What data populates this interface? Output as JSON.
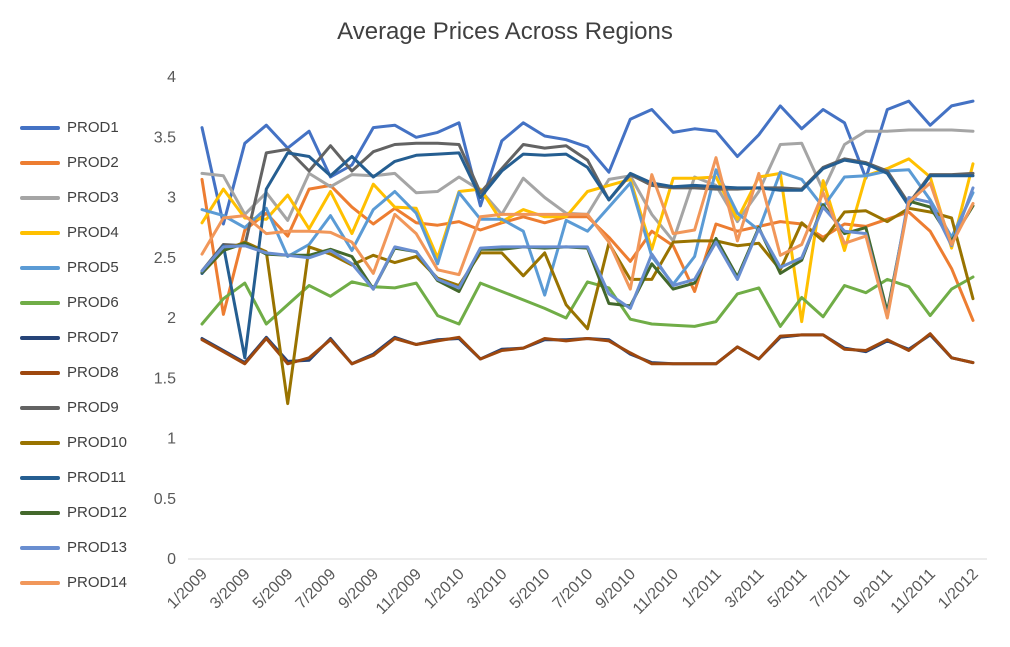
{
  "chart_data": {
    "type": "line",
    "title": "Average Prices Across Regions",
    "xlabel": "",
    "ylabel": "",
    "ylim": [
      0,
      4
    ],
    "yticks": [
      "0",
      "0.5",
      "1",
      "1.5",
      "2",
      "2.5",
      "3",
      "3.5",
      "4"
    ],
    "xticks": [
      "1/2009",
      "3/2009",
      "5/2009",
      "7/2009",
      "9/2009",
      "11/2009",
      "1/2010",
      "3/2010",
      "5/2010",
      "7/2010",
      "9/2010",
      "11/2010",
      "1/2011",
      "3/2011",
      "5/2011",
      "7/2011",
      "9/2011",
      "11/2011",
      "1/2012"
    ],
    "grid": false,
    "legend_position": "left",
    "x": [
      "1/2009",
      "2/2009",
      "3/2009",
      "4/2009",
      "5/2009",
      "6/2009",
      "7/2009",
      "8/2009",
      "9/2009",
      "10/2009",
      "11/2009",
      "12/2009",
      "1/2010",
      "2/2010",
      "3/2010",
      "4/2010",
      "5/2010",
      "6/2010",
      "7/2010",
      "8/2010",
      "9/2010",
      "10/2010",
      "11/2010",
      "12/2010",
      "1/2011",
      "2/2011",
      "3/2011",
      "4/2011",
      "5/2011",
      "6/2011",
      "7/2011",
      "8/2011",
      "9/2011",
      "10/2011",
      "11/2011",
      "12/2011",
      "1/2012"
    ],
    "series": [
      {
        "name": "PROD1",
        "color": "#4472C4",
        "values": [
          3.58,
          2.78,
          3.45,
          3.6,
          3.41,
          3.55,
          3.17,
          3.27,
          3.58,
          3.6,
          3.5,
          3.54,
          3.62,
          2.93,
          3.47,
          3.62,
          3.51,
          3.48,
          3.42,
          3.21,
          3.65,
          3.73,
          3.54,
          3.57,
          3.55,
          3.34,
          3.52,
          3.76,
          3.57,
          3.73,
          3.62,
          3.16,
          3.73,
          3.8,
          3.6,
          3.76,
          3.8
        ]
      },
      {
        "name": "PROD2",
        "color": "#ED7D31",
        "values": [
          3.15,
          2.03,
          2.73,
          2.87,
          2.68,
          3.07,
          3.1,
          2.92,
          2.78,
          2.91,
          2.79,
          2.77,
          2.8,
          2.73,
          2.79,
          2.84,
          2.79,
          2.84,
          2.84,
          2.67,
          2.47,
          2.72,
          2.6,
          2.22,
          2.78,
          2.72,
          2.76,
          2.8,
          2.78,
          2.67,
          2.78,
          2.76,
          2.82,
          2.88,
          2.72,
          2.41,
          1.98
        ]
      },
      {
        "name": "PROD3",
        "color": "#A5A5A5",
        "values": [
          3.2,
          3.18,
          2.86,
          3.04,
          2.81,
          3.2,
          3.09,
          3.19,
          3.18,
          3.2,
          3.04,
          3.05,
          3.17,
          3.06,
          2.86,
          3.16,
          3.0,
          2.87,
          2.86,
          3.15,
          3.18,
          2.86,
          2.64,
          3.17,
          3.1,
          2.8,
          3.05,
          3.44,
          3.45,
          3.06,
          3.44,
          3.55,
          3.55,
          3.56,
          3.56,
          3.56,
          3.55
        ]
      },
      {
        "name": "PROD4",
        "color": "#FFC000",
        "values": [
          2.79,
          3.07,
          2.83,
          2.82,
          3.02,
          2.74,
          3.05,
          2.7,
          3.11,
          2.92,
          2.91,
          2.5,
          3.05,
          3.07,
          2.8,
          2.9,
          2.84,
          2.84,
          3.05,
          3.1,
          3.15,
          2.57,
          3.16,
          3.16,
          3.17,
          2.82,
          3.17,
          3.2,
          1.97,
          3.14,
          2.56,
          3.18,
          3.24,
          3.32,
          3.17,
          2.58,
          3.28
        ]
      },
      {
        "name": "PROD5",
        "color": "#5B9BD5",
        "values": [
          2.9,
          2.85,
          2.75,
          2.91,
          2.51,
          2.61,
          2.85,
          2.56,
          2.9,
          3.05,
          2.87,
          2.45,
          3.04,
          2.82,
          2.82,
          2.72,
          2.19,
          2.81,
          2.72,
          2.92,
          3.12,
          2.51,
          2.28,
          2.51,
          3.23,
          2.87,
          2.73,
          3.21,
          3.15,
          2.92,
          3.17,
          3.18,
          3.22,
          3.23,
          2.98,
          2.67,
          3.04
        ]
      },
      {
        "name": "PROD6",
        "color": "#70AD47",
        "values": [
          1.95,
          2.16,
          2.29,
          1.95,
          2.11,
          2.27,
          2.18,
          2.3,
          2.26,
          2.25,
          2.29,
          2.02,
          1.95,
          2.29,
          2.22,
          2.15,
          2.08,
          2.0,
          2.3,
          2.25,
          1.99,
          1.95,
          1.94,
          1.93,
          1.97,
          2.2,
          2.25,
          1.93,
          2.17,
          2.01,
          2.27,
          2.21,
          2.32,
          2.26,
          2.02,
          2.24,
          2.34
        ]
      },
      {
        "name": "PROD7",
        "color": "#264478",
        "values": [
          1.83,
          1.73,
          1.63,
          1.84,
          1.64,
          1.65,
          1.83,
          1.62,
          1.7,
          1.84,
          1.78,
          1.82,
          1.83,
          1.66,
          1.74,
          1.75,
          1.82,
          1.82,
          1.83,
          1.82,
          1.7,
          1.63,
          1.62,
          1.62,
          1.62,
          1.76,
          1.66,
          1.84,
          1.86,
          1.86,
          1.75,
          1.72,
          1.81,
          1.74,
          1.86,
          1.67,
          1.63
        ]
      },
      {
        "name": "PROD8",
        "color": "#9E480E",
        "values": [
          1.82,
          1.72,
          1.62,
          1.83,
          1.62,
          1.67,
          1.82,
          1.62,
          1.69,
          1.83,
          1.78,
          1.81,
          1.84,
          1.66,
          1.73,
          1.75,
          1.83,
          1.81,
          1.83,
          1.81,
          1.71,
          1.62,
          1.62,
          1.62,
          1.62,
          1.76,
          1.66,
          1.85,
          1.86,
          1.86,
          1.74,
          1.73,
          1.82,
          1.73,
          1.87,
          1.67,
          1.63
        ]
      },
      {
        "name": "PROD9",
        "color": "#636363",
        "values": [
          2.39,
          2.61,
          2.6,
          3.37,
          3.4,
          3.22,
          3.43,
          3.22,
          3.38,
          3.44,
          3.45,
          3.45,
          3.44,
          3.04,
          3.24,
          3.44,
          3.41,
          3.43,
          3.31,
          2.98,
          3.19,
          3.1,
          3.08,
          3.08,
          3.07,
          3.07,
          3.08,
          3.08,
          3.07,
          3.25,
          3.32,
          3.29,
          3.22,
          2.95,
          3.19,
          3.19,
          3.2
        ]
      },
      {
        "name": "PROD10",
        "color": "#997300",
        "values": [
          2.37,
          2.56,
          2.63,
          2.55,
          1.29,
          2.59,
          2.53,
          2.44,
          2.52,
          2.46,
          2.51,
          2.33,
          2.27,
          2.54,
          2.54,
          2.35,
          2.54,
          2.11,
          1.91,
          2.62,
          2.32,
          2.32,
          2.63,
          2.64,
          2.64,
          2.6,
          2.62,
          2.4,
          2.79,
          2.64,
          2.88,
          2.89,
          2.8,
          2.91,
          2.88,
          2.83,
          2.16
        ]
      },
      {
        "name": "PROD11",
        "color": "#255E91",
        "values": [
          2.37,
          2.6,
          1.67,
          3.07,
          3.37,
          3.34,
          3.18,
          3.34,
          3.17,
          3.3,
          3.35,
          3.36,
          3.37,
          3.0,
          3.22,
          3.36,
          3.35,
          3.36,
          3.25,
          2.98,
          3.2,
          3.12,
          3.09,
          3.1,
          3.09,
          3.08,
          3.08,
          3.06,
          3.06,
          3.24,
          3.31,
          3.28,
          3.2,
          2.93,
          3.18,
          3.18,
          3.18
        ]
      },
      {
        "name": "PROD12",
        "color": "#43682B",
        "values": [
          2.38,
          2.56,
          2.62,
          2.53,
          2.52,
          2.52,
          2.57,
          2.51,
          2.24,
          2.58,
          2.55,
          2.31,
          2.22,
          2.57,
          2.57,
          2.59,
          2.58,
          2.59,
          2.58,
          2.12,
          2.1,
          2.45,
          2.24,
          2.29,
          2.66,
          2.34,
          2.75,
          2.37,
          2.48,
          2.94,
          2.7,
          2.75,
          2.05,
          2.97,
          2.92,
          2.64,
          2.93
        ]
      },
      {
        "name": "PROD13",
        "color": "#698ED0",
        "values": [
          2.39,
          2.59,
          2.6,
          2.54,
          2.52,
          2.5,
          2.56,
          2.45,
          2.24,
          2.59,
          2.55,
          2.32,
          2.25,
          2.58,
          2.59,
          2.59,
          2.59,
          2.59,
          2.59,
          2.2,
          2.08,
          2.53,
          2.27,
          2.32,
          2.63,
          2.32,
          2.74,
          2.42,
          2.5,
          2.92,
          2.72,
          2.7,
          2.01,
          3.0,
          2.96,
          2.6,
          3.08
        ]
      },
      {
        "name": "PROD14",
        "color": "#F1975A",
        "values": [
          2.53,
          2.83,
          2.85,
          2.7,
          2.72,
          2.72,
          2.71,
          2.63,
          2.37,
          2.86,
          2.7,
          2.4,
          2.36,
          2.84,
          2.86,
          2.86,
          2.86,
          2.86,
          2.86,
          2.63,
          2.24,
          3.19,
          2.7,
          2.73,
          3.33,
          2.64,
          3.2,
          2.52,
          2.61,
          3.04,
          2.62,
          2.68,
          2.0,
          2.96,
          3.12,
          2.61,
          2.95
        ]
      }
    ]
  }
}
